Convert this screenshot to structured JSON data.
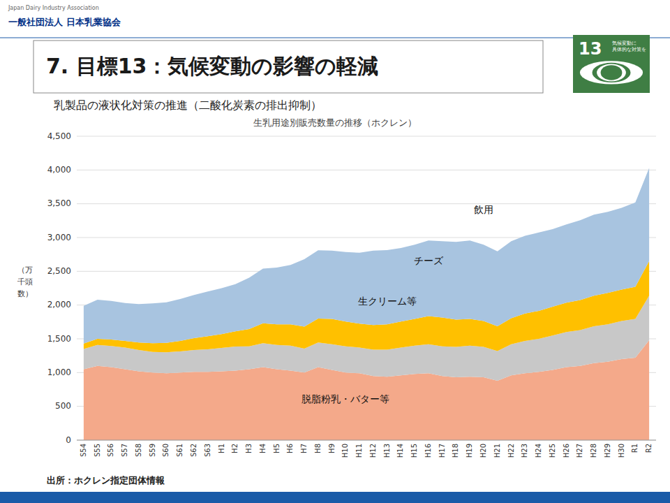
{
  "chart_data": {
    "type": "area",
    "stacked": true,
    "title": "7. 目標13：気候変動の影響の軽減",
    "subtitle": "乳製品の液状化対策の推進（二酸化炭素の排出抑制）",
    "chart_title": "生乳用途別販売数量の推移（ホクレン）",
    "source": "出所：ホクレン指定団体情報",
    "header_texts": [
      "Japan Dairy Industry Association",
      "一般社団法人  日本乳業協会"
    ],
    "badge_texts": [
      "13",
      "気候変動に\n具体的な対策を"
    ],
    "y_label": "（万\n千頭\n数）",
    "categories": [
      "S54",
      "S55",
      "S56",
      "S57",
      "S58",
      "S59",
      "S60",
      "S61",
      "S62",
      "S63",
      "H1",
      "H2",
      "H3",
      "H4",
      "H5",
      "H6",
      "H7",
      "H8",
      "H9",
      "H10",
      "H11",
      "H12",
      "H13",
      "H14",
      "H15",
      "H16",
      "H17",
      "H18",
      "H19",
      "H20",
      "H21",
      "H22",
      "H23",
      "H24",
      "H25",
      "H26",
      "H27",
      "H28",
      "H29",
      "H30",
      "R1",
      "R2"
    ],
    "series": [
      {
        "name": "脱脂粉乳・バター等",
        "color": "#F4A98A",
        "values": [
          1050,
          1100,
          1080,
          1050,
          1020,
          1000,
          990,
          1000,
          1010,
          1010,
          1020,
          1030,
          1050,
          1080,
          1050,
          1030,
          1000,
          1080,
          1040,
          1000,
          990,
          950,
          940,
          960,
          980,
          990,
          950,
          930,
          940,
          930,
          880,
          960,
          990,
          1010,
          1040,
          1080,
          1100,
          1140,
          1160,
          1200,
          1220,
          1480
        ]
      },
      {
        "name": "生クリーム等",
        "color": "#C8C8C8",
        "values": [
          300,
          310,
          315,
          320,
          315,
          305,
          310,
          315,
          325,
          335,
          345,
          355,
          340,
          355,
          360,
          370,
          355,
          365,
          380,
          390,
          380,
          390,
          400,
          410,
          420,
          430,
          440,
          450,
          460,
          450,
          440,
          460,
          480,
          490,
          510,
          520,
          530,
          545,
          555,
          565,
          575,
          660
        ]
      },
      {
        "name": "チーズ",
        "color": "#FFC000",
        "values": [
          80,
          90,
          95,
          100,
          110,
          130,
          140,
          155,
          175,
          195,
          205,
          225,
          255,
          295,
          305,
          315,
          325,
          355,
          375,
          365,
          355,
          365,
          375,
          385,
          395,
          415,
          425,
          405,
          395,
          385,
          365,
          385,
          405,
          415,
          425,
          435,
          445,
          455,
          465,
          465,
          475,
          510
        ]
      },
      {
        "name": "飲用",
        "color": "#A8C4E0",
        "values": [
          560,
          580,
          570,
          560,
          570,
          590,
          600,
          620,
          640,
          660,
          680,
          700,
          760,
          810,
          840,
          880,
          1000,
          1010,
          1010,
          1030,
          1050,
          1100,
          1100,
          1090,
          1100,
          1120,
          1130,
          1150,
          1160,
          1130,
          1110,
          1140,
          1150,
          1160,
          1150,
          1160,
          1180,
          1200,
          1200,
          1210,
          1250,
          1380
        ]
      }
    ],
    "ylim": [
      0,
      4500
    ],
    "yticks": [
      0,
      500,
      {
        "value": 1000,
        "label": "1,000"
      },
      {
        "value": 1500,
        "label": "1,500"
      },
      {
        "value": 2000,
        "label": "2,000"
      },
      {
        "value": 2500,
        "label": "2,500"
      },
      {
        "value": 3000,
        "label": "3,000"
      },
      {
        "value": 3500,
        "label": "3,500"
      },
      {
        "value": 4000,
        "label": "4,000"
      },
      {
        "value": 4500,
        "label": "4,500"
      }
    ],
    "grid": true,
    "annotations": [
      {
        "label": "飲用",
        "x": "H20",
        "y": 3400
      },
      {
        "label": "チーズ",
        "x": "H16",
        "y": 2650
      },
      {
        "label": "生クリーム等",
        "x": "H13",
        "y": 2050
      },
      {
        "label": "脱脂粉乳・バター等",
        "x": "H10",
        "y": 600
      }
    ]
  }
}
